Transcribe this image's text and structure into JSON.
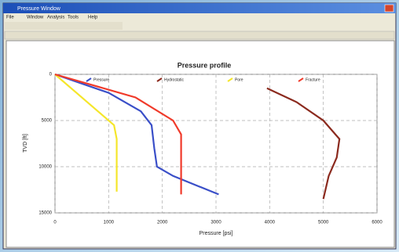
{
  "window": {
    "title": "Pressure Window",
    "menu": [
      "File",
      "Window",
      "Analysis",
      "Tools",
      "Help"
    ]
  },
  "chart_data": {
    "type": "line",
    "title": "Pressure profile",
    "x_label": "Pressure [psi]",
    "y_label": "TVD [ft]",
    "xlim": [
      0,
      6000
    ],
    "xticks": [
      0,
      1000,
      2000,
      3000,
      4000,
      5000,
      6000
    ],
    "ylim": [
      0,
      15000
    ],
    "yticks": [
      0,
      5000,
      10000,
      15000
    ],
    "y_inverted": true,
    "grid": true,
    "series": [
      {
        "name": "Pressure",
        "color": "#3a4fc8",
        "x": [
          0,
          1000,
          1600,
          1800,
          1850,
          1900,
          2200,
          3050
        ],
        "values": [
          0,
          2000,
          4000,
          5500,
          8000,
          10000,
          11000,
          13000
        ]
      },
      {
        "name": "Hydrostatic",
        "color": "#8b2a1e",
        "x": [
          3950,
          4500,
          5000,
          5300,
          5250,
          5100,
          5000
        ],
        "values": [
          1500,
          3000,
          5000,
          7000,
          9000,
          11000,
          13500
        ]
      },
      {
        "name": "Pore",
        "color": "#f5e62a",
        "x": [
          0,
          400,
          800,
          1100,
          1150,
          1150
        ],
        "values": [
          0,
          2000,
          4000,
          5500,
          7000,
          12700
        ]
      },
      {
        "name": "Fracture",
        "color": "#f03a2a",
        "x": [
          0,
          1500,
          2200,
          2350,
          2350
        ],
        "values": [
          0,
          2500,
          5000,
          6500,
          13000
        ]
      }
    ]
  }
}
